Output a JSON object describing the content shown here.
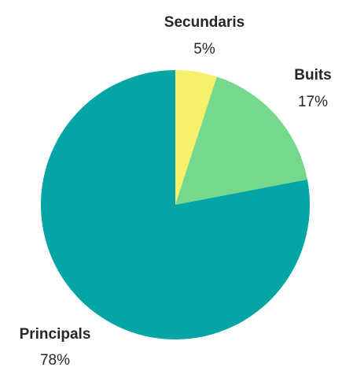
{
  "chart_data": {
    "type": "pie",
    "slices": [
      {
        "label": "Secundaris",
        "value": 5,
        "value_label": "5%",
        "color": "#f7f06a"
      },
      {
        "label": "Buits",
        "value": 17,
        "value_label": "17%",
        "color": "#74d98c"
      },
      {
        "label": "Principals",
        "value": 78,
        "value_label": "78%",
        "color": "#04a5a4"
      }
    ],
    "start_angle": "12 o'clock",
    "direction": "clockwise",
    "legend": "none (labels placed outside slices)"
  }
}
